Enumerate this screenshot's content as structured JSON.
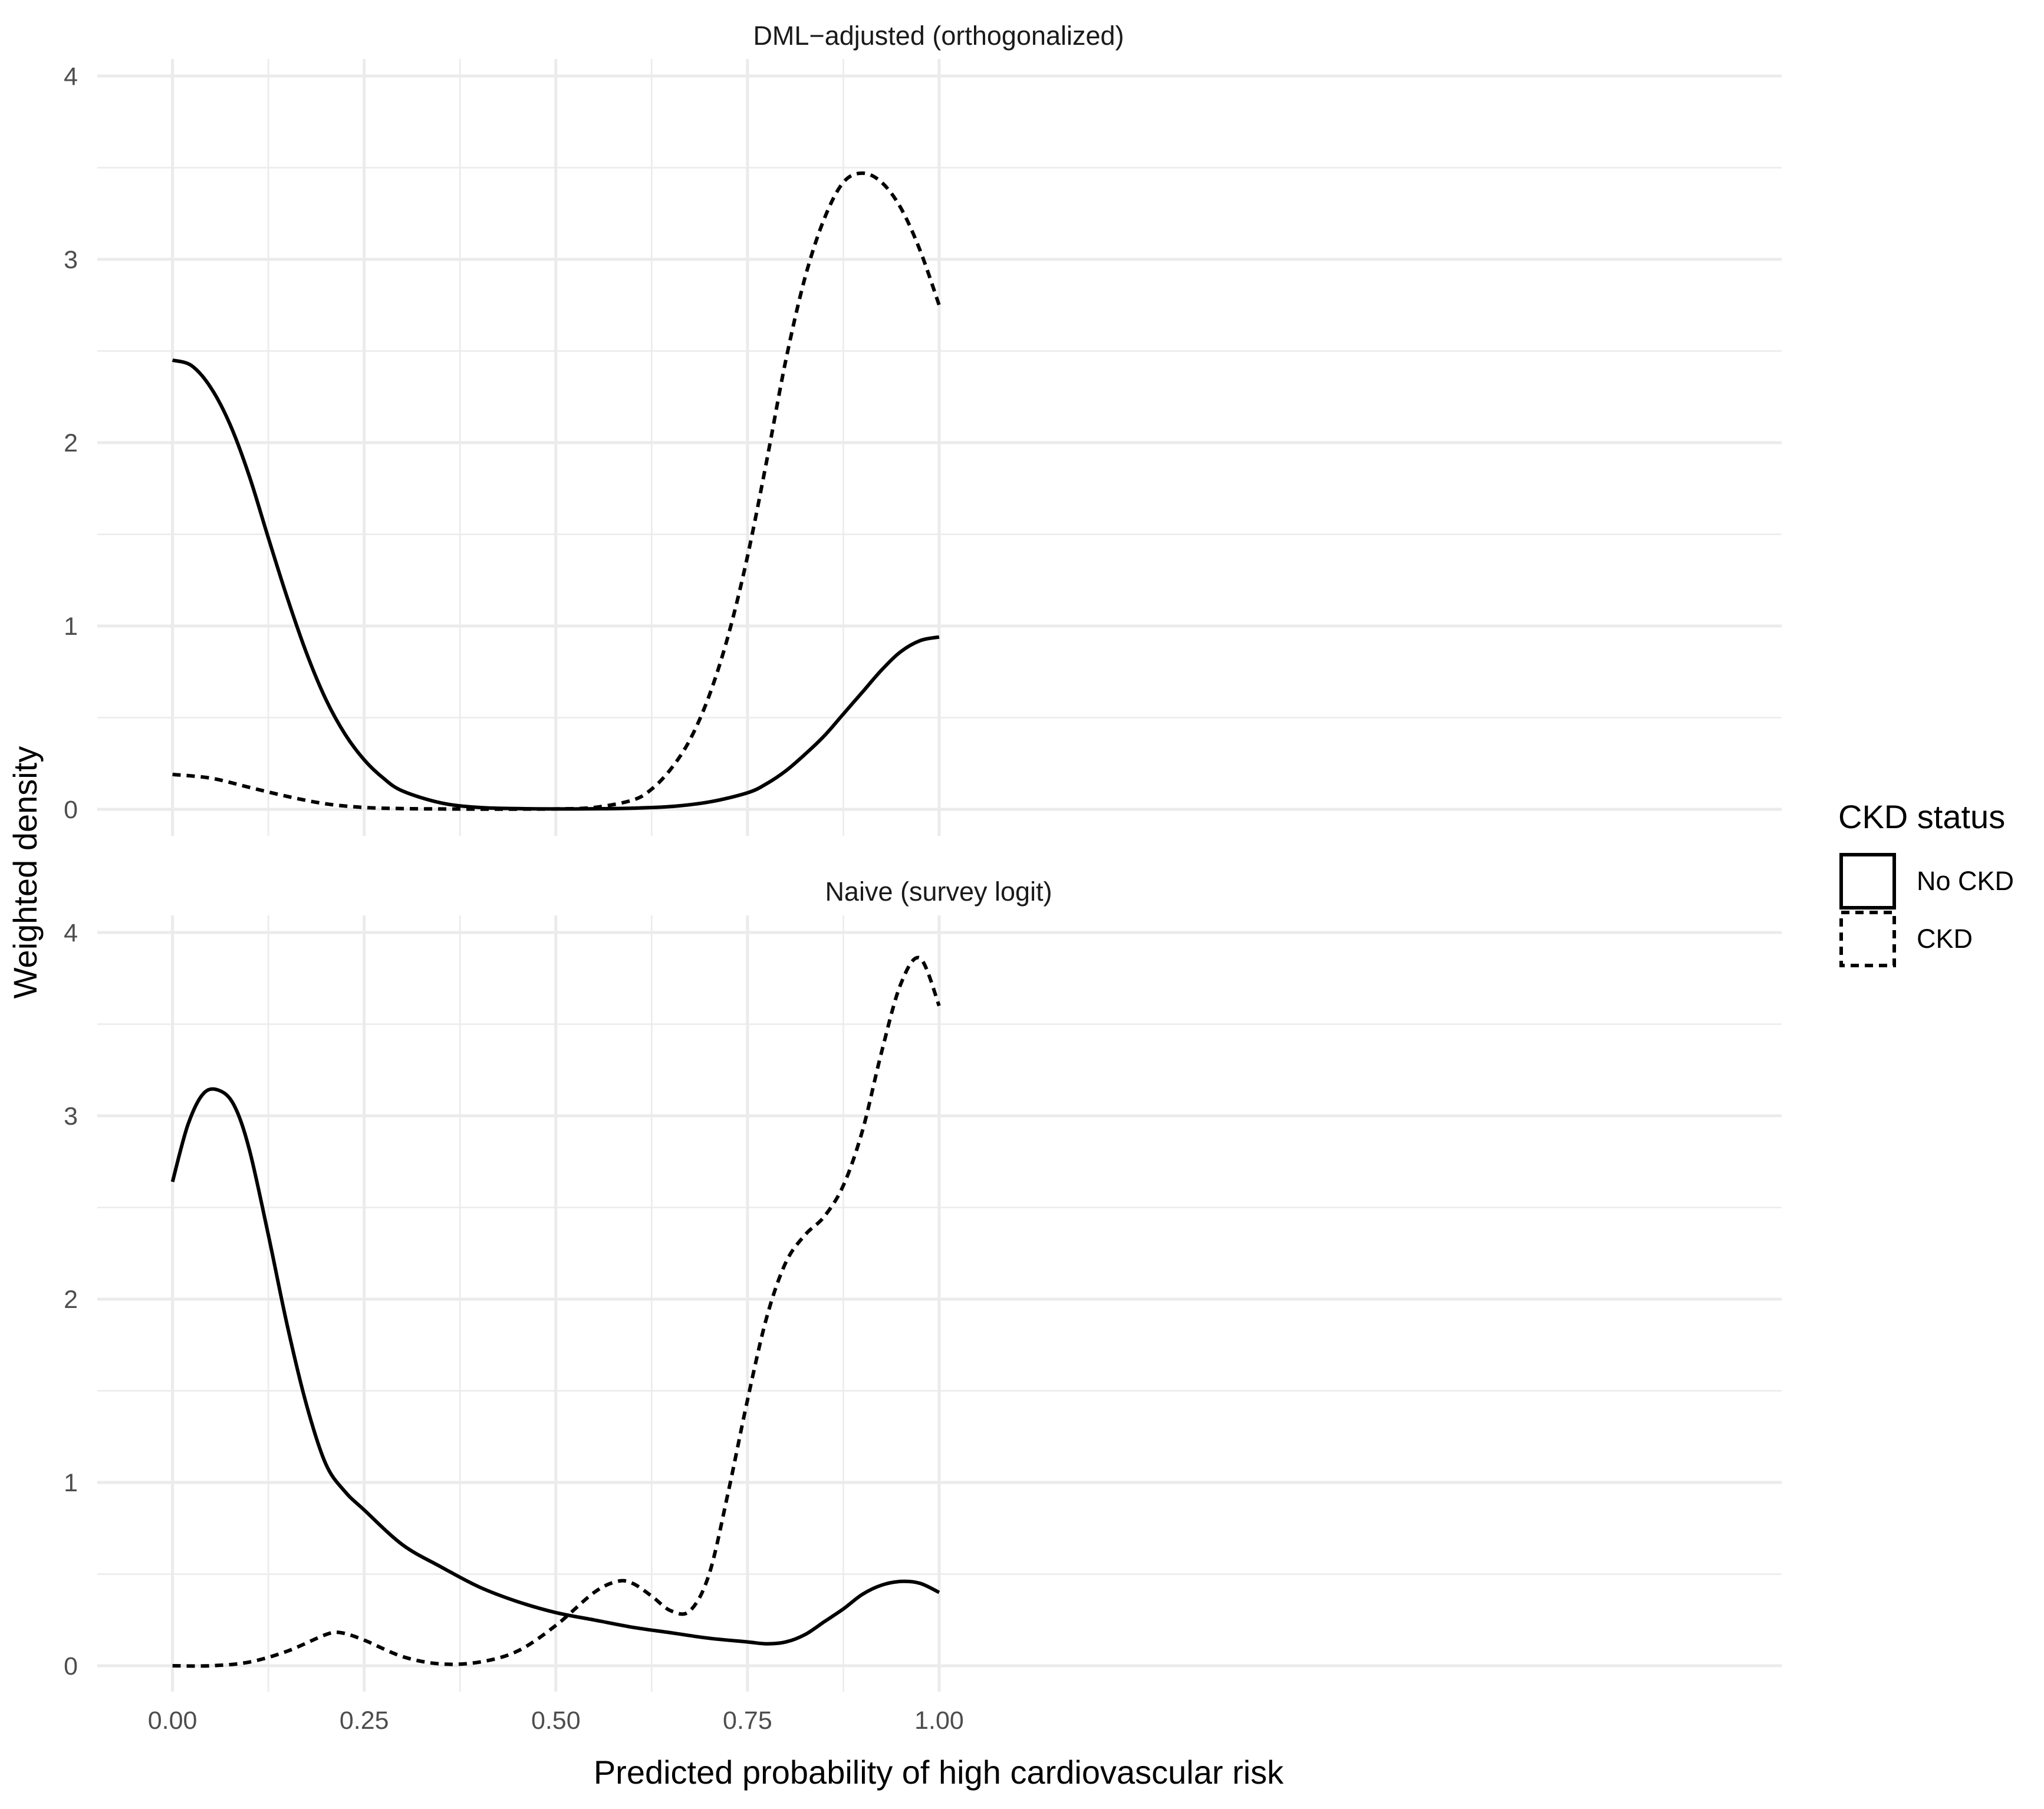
{
  "chart_data": {
    "type": "line",
    "xlabel": "Predicted probability of high cardiovascular risk",
    "ylabel": "Weighted density",
    "x_ticks": [
      "0.00",
      "0.25",
      "0.50",
      "0.75",
      "1.00"
    ],
    "y_ticks": [
      "0",
      "1",
      "2",
      "3",
      "4"
    ],
    "xlim": [
      -0.05,
      1.05
    ],
    "ylim": [
      0,
      4
    ],
    "grid": true,
    "legend": {
      "title": "CKD status",
      "position": "right",
      "entries": [
        {
          "label": "No CKD",
          "linetype": "solid"
        },
        {
          "label": "CKD",
          "linetype": "dashed"
        }
      ]
    },
    "panels": [
      {
        "title": "DML−adjusted (orthogonalized)",
        "series": [
          {
            "name": "No CKD",
            "linetype": "solid",
            "x": [
              0.0,
              0.025,
              0.05,
              0.075,
              0.1,
              0.125,
              0.15,
              0.175,
              0.2,
              0.225,
              0.25,
              0.275,
              0.3,
              0.35,
              0.4,
              0.45,
              0.5,
              0.55,
              0.6,
              0.65,
              0.7,
              0.75,
              0.775,
              0.8,
              0.825,
              0.85,
              0.875,
              0.9,
              0.925,
              0.95,
              0.975,
              1.0
            ],
            "y": [
              2.45,
              2.42,
              2.3,
              2.1,
              1.82,
              1.48,
              1.15,
              0.85,
              0.6,
              0.41,
              0.27,
              0.17,
              0.1,
              0.035,
              0.01,
              0.004,
              0.002,
              0.003,
              0.006,
              0.015,
              0.04,
              0.09,
              0.14,
              0.21,
              0.3,
              0.4,
              0.52,
              0.64,
              0.76,
              0.86,
              0.92,
              0.94
            ]
          },
          {
            "name": "CKD",
            "linetype": "dashed",
            "x": [
              0.0,
              0.05,
              0.1,
              0.15,
              0.2,
              0.25,
              0.3,
              0.35,
              0.4,
              0.45,
              0.5,
              0.55,
              0.6,
              0.625,
              0.65,
              0.675,
              0.7,
              0.725,
              0.75,
              0.775,
              0.8,
              0.825,
              0.85,
              0.875,
              0.9,
              0.925,
              0.95,
              0.975,
              1.0
            ],
            "y": [
              0.19,
              0.17,
              0.12,
              0.07,
              0.03,
              0.01,
              0.004,
              0.002,
              0.001,
              0.001,
              0.002,
              0.01,
              0.05,
              0.11,
              0.22,
              0.38,
              0.62,
              0.95,
              1.38,
              1.9,
              2.45,
              2.9,
              3.22,
              3.42,
              3.47,
              3.42,
              3.28,
              3.05,
              2.75
            ]
          }
        ]
      },
      {
        "title": "Naive (survey logit)",
        "series": [
          {
            "name": "No CKD",
            "linetype": "solid",
            "x": [
              0.0,
              0.02,
              0.04,
              0.06,
              0.08,
              0.1,
              0.125,
              0.15,
              0.175,
              0.2,
              0.225,
              0.25,
              0.3,
              0.35,
              0.4,
              0.45,
              0.5,
              0.55,
              0.6,
              0.65,
              0.7,
              0.75,
              0.775,
              0.8,
              0.825,
              0.85,
              0.875,
              0.9,
              0.925,
              0.95,
              0.975,
              1.0
            ],
            "y": [
              2.64,
              2.95,
              3.12,
              3.14,
              3.06,
              2.82,
              2.35,
              1.85,
              1.42,
              1.1,
              0.95,
              0.85,
              0.66,
              0.54,
              0.43,
              0.35,
              0.29,
              0.25,
              0.21,
              0.18,
              0.15,
              0.13,
              0.12,
              0.13,
              0.17,
              0.24,
              0.31,
              0.39,
              0.44,
              0.46,
              0.45,
              0.4
            ]
          },
          {
            "name": "CKD",
            "linetype": "dashed",
            "x": [
              0.0,
              0.05,
              0.1,
              0.15,
              0.2,
              0.22,
              0.25,
              0.3,
              0.35,
              0.4,
              0.45,
              0.5,
              0.55,
              0.58,
              0.6,
              0.625,
              0.65,
              0.675,
              0.7,
              0.725,
              0.75,
              0.775,
              0.8,
              0.825,
              0.85,
              0.875,
              0.9,
              0.925,
              0.95,
              0.975,
              1.0
            ],
            "y": [
              0.0,
              0.0,
              0.02,
              0.08,
              0.17,
              0.18,
              0.14,
              0.05,
              0.01,
              0.02,
              0.08,
              0.22,
              0.4,
              0.46,
              0.45,
              0.38,
              0.3,
              0.3,
              0.5,
              0.95,
              1.45,
              1.9,
              2.2,
              2.35,
              2.45,
              2.62,
              2.92,
              3.35,
              3.72,
              3.86,
              3.6
            ]
          }
        ]
      }
    ]
  }
}
